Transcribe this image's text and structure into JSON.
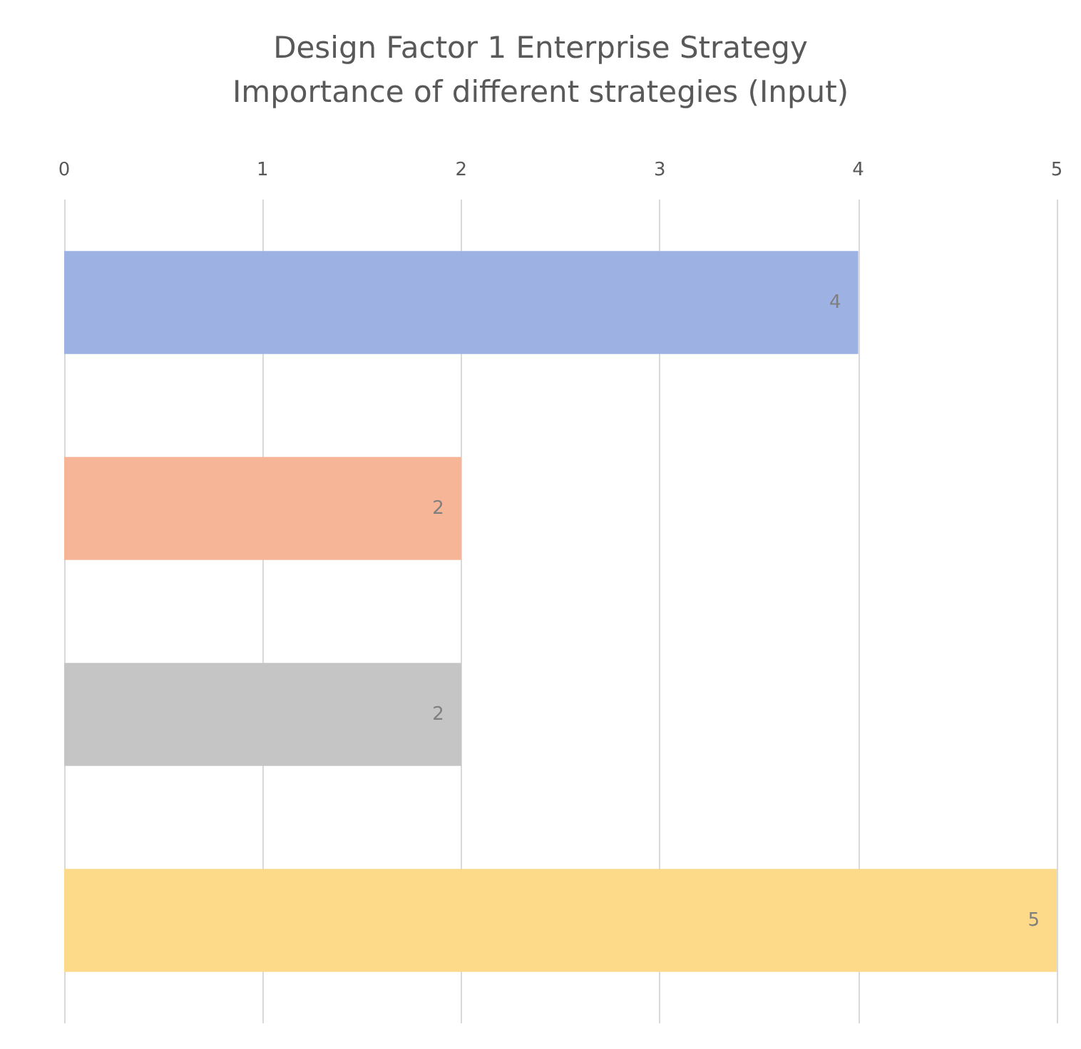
{
  "chart_data": {
    "type": "bar",
    "orientation": "horizontal",
    "title": "Design Factor 1 Enterprise Strategy",
    "subtitle": "Importance of different strategies (Input)",
    "categories": [
      null,
      null,
      null,
      null
    ],
    "values": [
      4,
      2,
      2,
      5
    ],
    "colors": [
      "#9db1e2",
      "#f5b596",
      "#c5c5c5",
      "#fdd98a"
    ],
    "xlim": [
      0,
      5
    ],
    "xticks": [
      0,
      1,
      2,
      3,
      4,
      5
    ],
    "grid": "x",
    "data_labels": true
  }
}
